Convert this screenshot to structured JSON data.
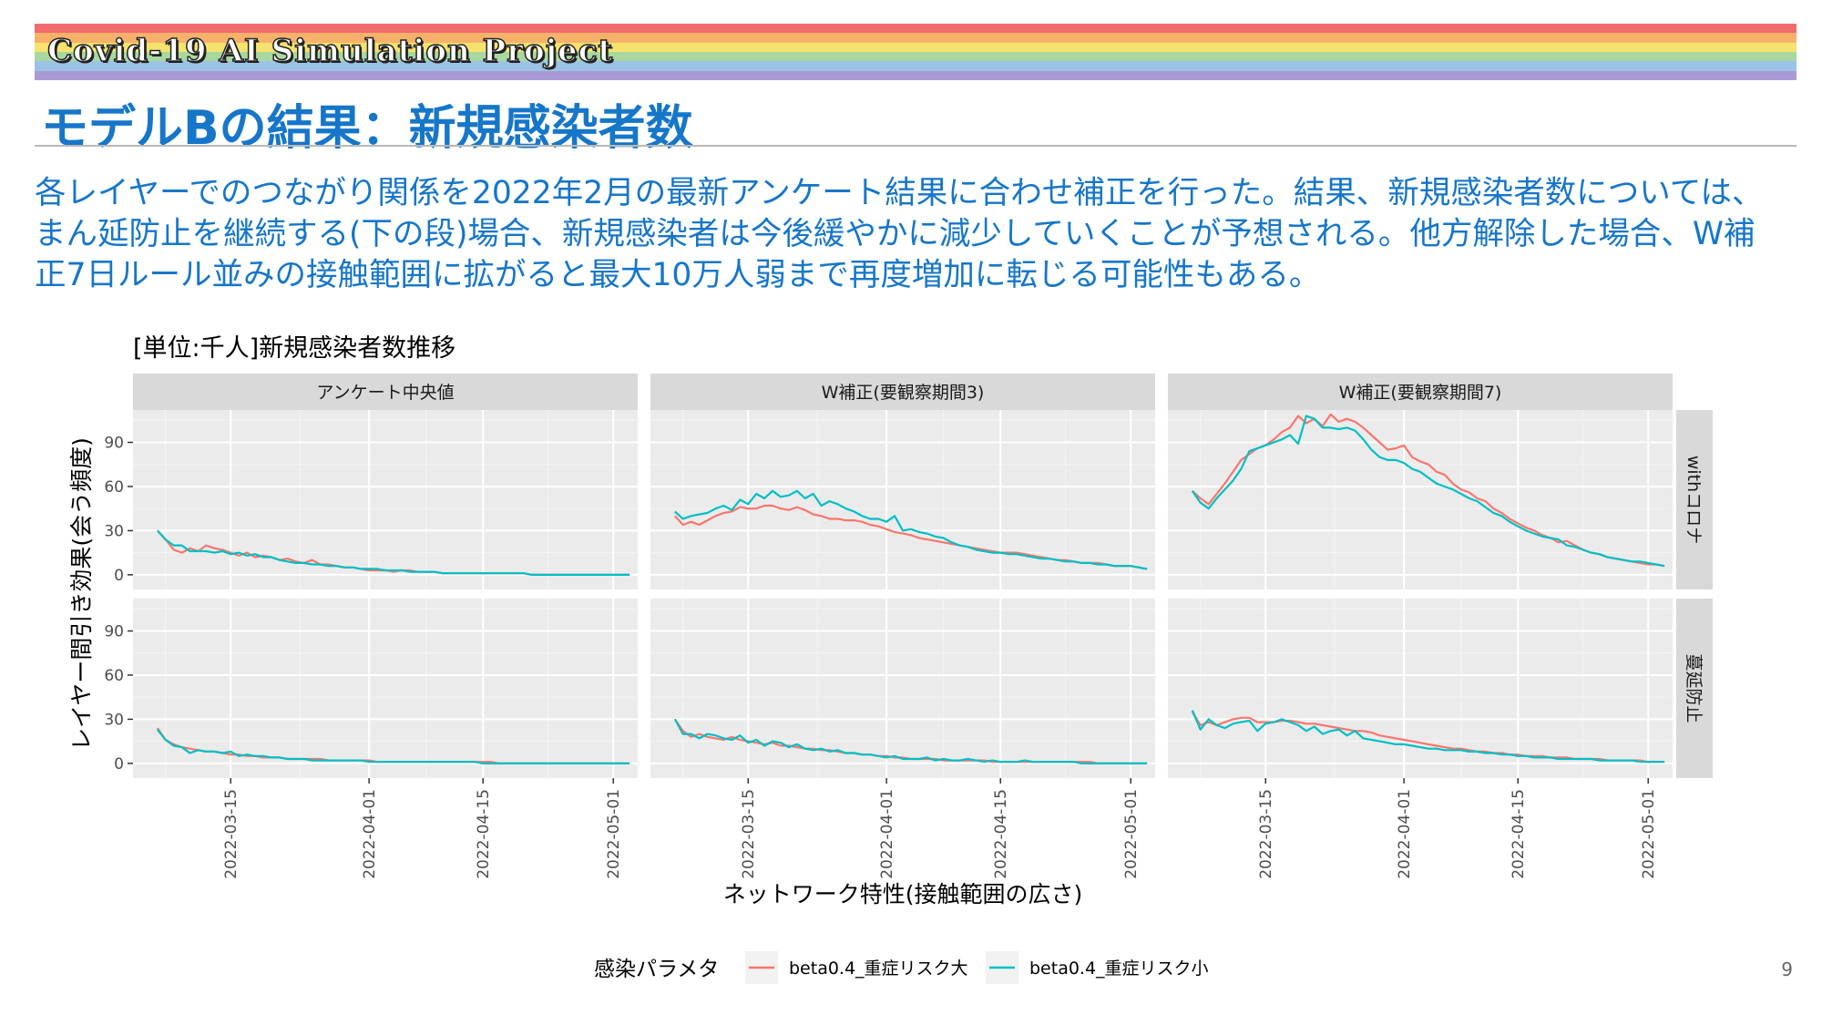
{
  "header": {
    "banner_title": "Covid-19 AI Simulation Project",
    "slide_title": "モデルBの結果：新規感染者数",
    "body_text": "各レイヤーでのつながり関係を2022年2月の最新アンケート結果に合わせ補正を行った。結果、新規感染者数については、まん延防止を継続する(下の段)場合、新規感染者は今後緩やかに減少していくことが予想される。他方解除した場合、W補正7日ルール並みの接触範囲に拡がると最大10万人弱まで再度増加に転じる可能性もある。",
    "rainbow_colors": [
      "#f26b6b",
      "#f6b26b",
      "#f5e36e",
      "#a8d8a0",
      "#9cc3e6",
      "#a99ad6"
    ]
  },
  "page_number": "9",
  "chart_data": {
    "type": "line",
    "title": "[単位:千人]新規感染者数推移",
    "xlabel": "ネットワーク特性(接触範囲の広さ)",
    "ylabel": "レイヤー間引き効果(会う頻度)",
    "ylim": [
      -10,
      112
    ],
    "yticks": [
      0,
      30,
      60,
      90
    ],
    "xlim": [
      "2022-03-03",
      "2022-05-04"
    ],
    "xticks": [
      "2022-03-15",
      "2022-04-01",
      "2022-04-15",
      "2022-05-01"
    ],
    "columns": [
      "アンケート中央値",
      "W補正(要観察期間3)",
      "W補正(要観察期間7)"
    ],
    "rows": [
      "withコロナ",
      "蔓延防止"
    ],
    "legend": {
      "title": "感染パラメタ",
      "position": "bottom",
      "items": [
        {
          "name": "beta0.4_重症リスク大",
          "color": "#f8766d"
        },
        {
          "name": "beta0.4_重症リスク小",
          "color": "#00bfc4"
        }
      ]
    },
    "x_start": "2022-03-06",
    "panels": [
      {
        "row": 0,
        "col": 0,
        "series": [
          {
            "name": "beta0.4_重症リスク大",
            "values": [
              30,
              24,
              17,
              15,
              18,
              16,
              20,
              18,
              17,
              15,
              13,
              15,
              12,
              13,
              12,
              10,
              11,
              9,
              8,
              10,
              7,
              7,
              6,
              5,
              5,
              4,
              3,
              3,
              3,
              2,
              3,
              3,
              2,
              2,
              2,
              1,
              1,
              1,
              1,
              1,
              1,
              1,
              1,
              1,
              1,
              1,
              0,
              0,
              0,
              0,
              0,
              0,
              0,
              0,
              0,
              0,
              0,
              0,
              0
            ]
          },
          {
            "name": "beta0.4_重症リスク小",
            "values": [
              30,
              24,
              20,
              20,
              16,
              16,
              16,
              15,
              16,
              14,
              15,
              13,
              14,
              12,
              12,
              10,
              9,
              8,
              8,
              7,
              7,
              6,
              6,
              5,
              5,
              4,
              4,
              4,
              3,
              3,
              3,
              2,
              2,
              2,
              2,
              1,
              1,
              1,
              1,
              1,
              1,
              1,
              1,
              1,
              1,
              1,
              0,
              0,
              0,
              0,
              0,
              0,
              0,
              0,
              0,
              0,
              0,
              0,
              0
            ]
          }
        ]
      },
      {
        "row": 0,
        "col": 1,
        "series": [
          {
            "name": "beta0.4_重症リスク大",
            "values": [
              40,
              34,
              36,
              34,
              37,
              40,
              42,
              43,
              46,
              45,
              45,
              47,
              47,
              45,
              44,
              46,
              44,
              41,
              40,
              38,
              38,
              37,
              37,
              36,
              34,
              33,
              31,
              29,
              28,
              27,
              25,
              24,
              23,
              22,
              21,
              20,
              19,
              18,
              17,
              16,
              15,
              15,
              15,
              14,
              13,
              12,
              11,
              10,
              10,
              9,
              8,
              8,
              8,
              7,
              6,
              6,
              6,
              5,
              4
            ]
          },
          {
            "name": "beta0.4_重症リスク小",
            "values": [
              43,
              38,
              40,
              41,
              42,
              45,
              47,
              44,
              51,
              48,
              55,
              52,
              57,
              53,
              54,
              57,
              52,
              55,
              47,
              50,
              48,
              45,
              43,
              40,
              38,
              38,
              36,
              40,
              30,
              31,
              29,
              28,
              26,
              25,
              22,
              20,
              19,
              17,
              16,
              15,
              15,
              14,
              14,
              13,
              12,
              11,
              11,
              10,
              9,
              9,
              8,
              8,
              7,
              7,
              6,
              6,
              6,
              5,
              4
            ]
          }
        ]
      },
      {
        "row": 0,
        "col": 2,
        "series": [
          {
            "name": "beta0.4_重症リスク大",
            "values": [
              57,
              52,
              48,
              55,
              62,
              70,
              78,
              82,
              86,
              88,
              92,
              97,
              100,
              108,
              103,
              106,
              101,
              109,
              104,
              106,
              104,
              100,
              95,
              90,
              85,
              86,
              88,
              80,
              77,
              75,
              70,
              68,
              62,
              58,
              56,
              52,
              50,
              45,
              42,
              38,
              35,
              32,
              30,
              27,
              25,
              22,
              23,
              20,
              17,
              15,
              14,
              12,
              11,
              10,
              9,
              8,
              7,
              7,
              6
            ]
          },
          {
            "name": "beta0.4_重症リスク小",
            "values": [
              57,
              49,
              45,
              52,
              58,
              64,
              72,
              84,
              86,
              88,
              90,
              92,
              95,
              89,
              108,
              106,
              100,
              100,
              99,
              100,
              98,
              92,
              85,
              80,
              78,
              78,
              76,
              72,
              70,
              66,
              62,
              60,
              58,
              55,
              52,
              50,
              46,
              42,
              40,
              36,
              33,
              30,
              28,
              26,
              25,
              24,
              20,
              19,
              17,
              15,
              14,
              12,
              11,
              10,
              9,
              9,
              8,
              7,
              6
            ]
          }
        ]
      },
      {
        "row": 1,
        "col": 0,
        "series": [
          {
            "name": "beta0.4_重症リスク大",
            "values": [
              24,
              16,
              13,
              11,
              10,
              9,
              8,
              8,
              7,
              6,
              6,
              5,
              5,
              4,
              4,
              4,
              3,
              3,
              3,
              3,
              3,
              2,
              2,
              2,
              2,
              2,
              2,
              1,
              1,
              1,
              1,
              1,
              1,
              1,
              1,
              1,
              1,
              1,
              1,
              1,
              1,
              1,
              0,
              0,
              0,
              0,
              0,
              0,
              0,
              0,
              0,
              0,
              0,
              0,
              0,
              0,
              0,
              0,
              0
            ]
          },
          {
            "name": "beta0.4_重症リスク小",
            "values": [
              23,
              16,
              12,
              11,
              7,
              9,
              8,
              8,
              7,
              8,
              5,
              6,
              5,
              5,
              4,
              4,
              3,
              3,
              3,
              2,
              2,
              2,
              2,
              2,
              2,
              2,
              1,
              1,
              1,
              1,
              1,
              1,
              1,
              1,
              1,
              1,
              1,
              1,
              1,
              1,
              0,
              0,
              0,
              0,
              0,
              0,
              0,
              0,
              0,
              0,
              0,
              0,
              0,
              0,
              0,
              0,
              0,
              0,
              0
            ]
          }
        ]
      },
      {
        "row": 1,
        "col": 1,
        "series": [
          {
            "name": "beta0.4_重症リスク大",
            "values": [
              30,
              22,
              18,
              20,
              18,
              17,
              16,
              18,
              16,
              15,
              14,
              13,
              14,
              12,
              12,
              11,
              10,
              10,
              9,
              9,
              8,
              7,
              7,
              6,
              6,
              5,
              5,
              4,
              4,
              3,
              3,
              3,
              3,
              2,
              2,
              2,
              2,
              2,
              2,
              1,
              1,
              1,
              1,
              1,
              1,
              1,
              1,
              1,
              1,
              1,
              1,
              1,
              0,
              0,
              0,
              0,
              0,
              0,
              0
            ]
          },
          {
            "name": "beta0.4_重症リスク小",
            "values": [
              30,
              20,
              20,
              17,
              20,
              19,
              17,
              16,
              19,
              14,
              16,
              12,
              15,
              14,
              11,
              13,
              10,
              9,
              10,
              8,
              9,
              7,
              7,
              6,
              6,
              5,
              4,
              5,
              3,
              3,
              3,
              4,
              2,
              3,
              2,
              2,
              3,
              2,
              1,
              2,
              1,
              1,
              1,
              2,
              1,
              1,
              1,
              1,
              1,
              1,
              0,
              0,
              0,
              0,
              0,
              0,
              0,
              0,
              0
            ]
          }
        ]
      },
      {
        "row": 1,
        "col": 2,
        "series": [
          {
            "name": "beta0.4_重症リスク大",
            "values": [
              35,
              26,
              28,
              26,
              28,
              30,
              31,
              31,
              28,
              28,
              28,
              29,
              29,
              28,
              27,
              27,
              26,
              25,
              24,
              23,
              22,
              22,
              21,
              19,
              18,
              17,
              16,
              15,
              14,
              13,
              12,
              11,
              10,
              10,
              9,
              8,
              8,
              7,
              7,
              6,
              6,
              5,
              5,
              5,
              4,
              4,
              4,
              3,
              3,
              3,
              3,
              2,
              2,
              2,
              2,
              2,
              1,
              1,
              1
            ]
          },
          {
            "name": "beta0.4_重症リスク小",
            "values": [
              36,
              23,
              30,
              26,
              24,
              27,
              28,
              29,
              22,
              27,
              28,
              30,
              28,
              26,
              22,
              25,
              20,
              22,
              23,
              19,
              22,
              17,
              16,
              15,
              14,
              13,
              13,
              12,
              11,
              10,
              10,
              9,
              9,
              9,
              8,
              8,
              7,
              7,
              6,
              6,
              5,
              5,
              4,
              4,
              4,
              3,
              3,
              3,
              3,
              3,
              2,
              2,
              2,
              2,
              2,
              1,
              1,
              1,
              1
            ]
          }
        ]
      }
    ]
  }
}
